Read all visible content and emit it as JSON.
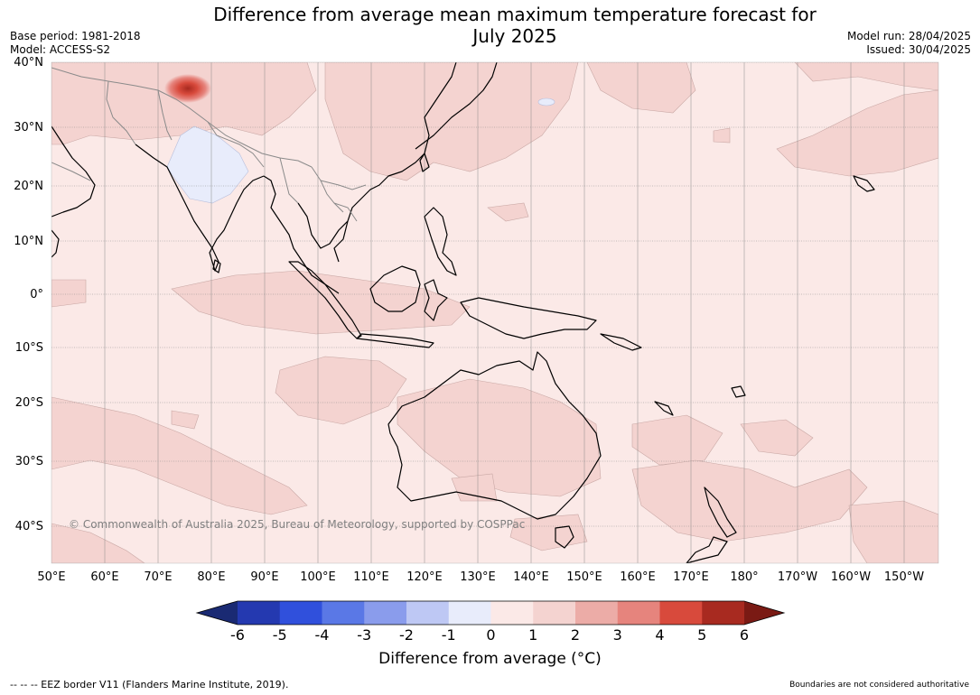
{
  "title_line1": "Difference from average mean maximum temperature forecast for",
  "title_line2": "July 2025",
  "meta_left": [
    "Base period: 1981-2018",
    "Model: ACCESS-S2"
  ],
  "meta_right": [
    "Model run: 28/04/2025",
    "Issued: 30/04/2025"
  ],
  "copyright": "© Commonwealth of Australia 2025, Bureau of Meteorology, supported by COSPPac",
  "lat_labels": [
    "40°N",
    "30°N",
    "20°N",
    "10°N",
    "0°",
    "10°S",
    "20°S",
    "30°S",
    "40°S"
  ],
  "lon_labels": [
    "50°E",
    "60°E",
    "70°E",
    "80°E",
    "90°E",
    "100°E",
    "110°E",
    "120°E",
    "130°E",
    "140°E",
    "150°E",
    "160°E",
    "170°E",
    "180°",
    "170°W",
    "160°W",
    "150°W"
  ],
  "colorbar": {
    "ticks": [
      "-6",
      "-5",
      "-4",
      "-3",
      "-2",
      "-1",
      "0",
      "1",
      "2",
      "3",
      "4",
      "5",
      "6"
    ],
    "colors": [
      "#1a2a73",
      "#2439b0",
      "#3050dc",
      "#5a78e6",
      "#8a9cec",
      "#bec8f4",
      "#e8ecfb",
      "#fbe9e7",
      "#f4d3d0",
      "#ecaca7",
      "#e6847d",
      "#d84a3c",
      "#a82a20",
      "#7a1a14"
    ],
    "label": "Difference from average (°C)"
  },
  "footer_left": "--  --  -- EEZ border V11 (Flanders Marine Institute, 2019).",
  "footer_right": "Boundaries are not considered authoritative"
}
